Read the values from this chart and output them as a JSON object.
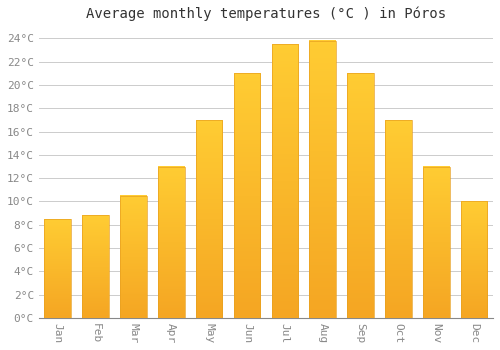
{
  "title": "Average monthly temperatures (°C ) in Póros",
  "months": [
    "Jan",
    "Feb",
    "Mar",
    "Apr",
    "May",
    "Jun",
    "Jul",
    "Aug",
    "Sep",
    "Oct",
    "Nov",
    "Dec"
  ],
  "temperatures": [
    8.5,
    8.8,
    10.5,
    13.0,
    17.0,
    21.0,
    23.5,
    23.8,
    21.0,
    17.0,
    13.0,
    10.0
  ],
  "bar_color_bottom": "#F5A623",
  "bar_color_top": "#FFCC33",
  "background_color": "#FFFFFF",
  "grid_color": "#CCCCCC",
  "tick_color": "#888888",
  "title_color": "#333333",
  "ylim": [
    0,
    25
  ],
  "yticks": [
    0,
    2,
    4,
    6,
    8,
    10,
    12,
    14,
    16,
    18,
    20,
    22,
    24
  ],
  "title_fontsize": 10,
  "tick_fontsize": 8,
  "bar_width": 0.7,
  "figsize": [
    5.0,
    3.5
  ],
  "dpi": 100
}
